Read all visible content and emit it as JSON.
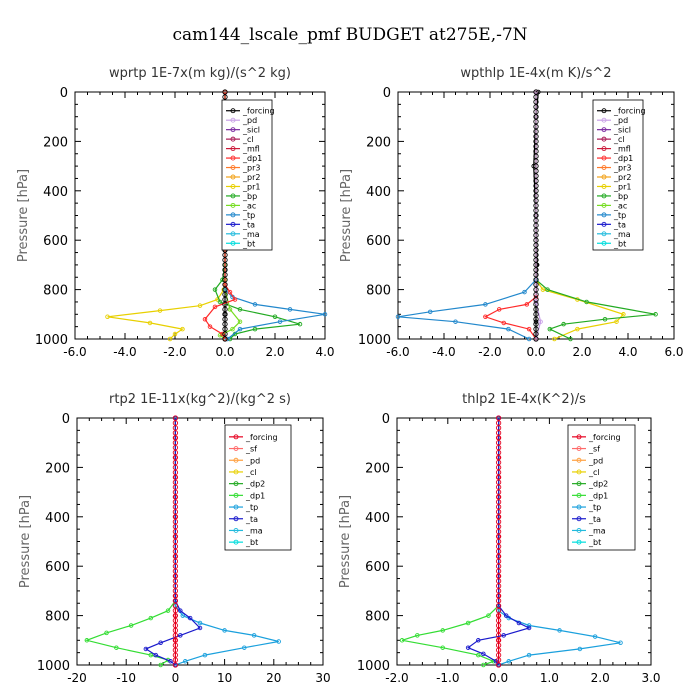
{
  "figure_title": "cam144_lscale_pmf  BUDGET at275E,-7N",
  "colors": {
    "_forcing": "#000000",
    "_forcing_b": "#e6001f",
    "_pd": "#c8a0e6",
    "_sicl": "#7a2aa0",
    "_cl": "#aa1a55",
    "_mfl": "#cc1a3a",
    "_dp1": "#ff2a2a",
    "_pr3": "#ff7a2a",
    "_pr2": "#f2a31c",
    "_pr1": "#e8d000",
    "_bp": "#22aa22",
    "_ac": "#77dd22",
    "_tp": "#2288cc",
    "_ta": "#1a1acc",
    "_ma": "#22bbdd",
    "_bt": "#00dddd",
    "_sf": "#ff6a6a",
    "_pd_b": "#ffa040",
    "_cl_b": "#e8d000",
    "_dp2": "#22aa22",
    "_dp1_b": "#33dd33",
    "_tp_b": "#1aa0dd",
    "_ta_b": "#1a1acc"
  },
  "chart_data": [
    {
      "type": "line",
      "title": "wprtp   1E-7x(m kg)/(s^2 kg)",
      "ylabel": "Pressure [hPa]",
      "xlim": [
        -6.0,
        4.0
      ],
      "ylim": [
        1000,
        0
      ],
      "xticks": [
        -6.0,
        -4.0,
        -2.0,
        0.0,
        2.0,
        4.0
      ],
      "xticklabels": [
        "-6.0",
        "-4.0",
        "-2.0",
        "0.0",
        "2.0",
        "4.0"
      ],
      "yticks": [
        0,
        200,
        400,
        600,
        800,
        1000
      ],
      "legend": [
        "_forcing",
        "_pd",
        "_sicl",
        "_cl",
        "_mfl",
        "_dp1",
        "_pr3",
        "_pr2",
        "_pr1",
        "_bp",
        "_ac",
        "_tp",
        "_ta",
        "_ma",
        "_bt"
      ],
      "legend_placement": "top-right",
      "series": [
        {
          "name": "_forcing",
          "color": "#000000",
          "x": [
            0,
            0,
            0,
            0,
            0,
            0,
            0,
            0,
            0,
            0,
            0,
            0,
            0
          ],
          "y": [
            0,
            80,
            160,
            240,
            320,
            400,
            480,
            560,
            640,
            720,
            800,
            900,
            1000
          ]
        },
        {
          "name": "_pr1",
          "color": "#e8d000",
          "x": [
            0,
            0,
            0,
            -0.05,
            -0.3,
            -1.0,
            -2.6,
            -4.7,
            -3.0,
            -1.7,
            -2.0,
            -2.2
          ],
          "y": [
            0,
            600,
            760,
            800,
            840,
            865,
            885,
            910,
            935,
            960,
            980,
            1000
          ]
        },
        {
          "name": "_bp",
          "color": "#22aa22",
          "x": [
            0,
            0,
            -0.1,
            -0.4,
            -0.2,
            0.6,
            2.0,
            3.0,
            1.2,
            0.4,
            0.2
          ],
          "y": [
            0,
            700,
            760,
            800,
            850,
            880,
            910,
            940,
            960,
            980,
            1000
          ]
        },
        {
          "name": "_ac",
          "color": "#77dd22",
          "x": [
            0,
            0,
            0.2,
            0.6,
            0.3,
            -0.2,
            0
          ],
          "y": [
            0,
            800,
            880,
            930,
            960,
            985,
            1000
          ]
        },
        {
          "name": "_tp",
          "color": "#2288cc",
          "x": [
            0,
            0,
            0.3,
            1.2,
            2.6,
            4.0,
            2.2,
            0.6,
            0.1
          ],
          "y": [
            0,
            800,
            830,
            860,
            880,
            900,
            930,
            960,
            1000
          ]
        },
        {
          "name": "_dp1",
          "color": "#ff2a2a",
          "x": [
            0,
            0,
            0.2,
            0.4,
            -0.4,
            -0.8,
            -0.6,
            -0.1,
            0
          ],
          "y": [
            0,
            780,
            810,
            840,
            870,
            920,
            950,
            980,
            1000
          ]
        }
      ]
    },
    {
      "type": "line",
      "title": "wpthlp   1E-4x(m K)/s^2",
      "ylabel": "Pressure [hPa]",
      "xlim": [
        -6.0,
        6.0
      ],
      "ylim": [
        1000,
        0
      ],
      "xticks": [
        -6.0,
        -4.0,
        -2.0,
        0.0,
        2.0,
        4.0,
        6.0
      ],
      "xticklabels": [
        "-6.0",
        "-4.0",
        "-2.0",
        "0.0",
        "2.0",
        "4.0",
        "6.0"
      ],
      "yticks": [
        0,
        200,
        400,
        600,
        800,
        1000
      ],
      "legend": [
        "_forcing",
        "_pd",
        "_sicl",
        "_cl",
        "_mfl",
        "_dp1",
        "_pr3",
        "_pr2",
        "_pr1",
        "_bp",
        "_ac",
        "_tp",
        "_ta",
        "_ma",
        "_bt"
      ],
      "legend_placement": "top-right",
      "series": [
        {
          "name": "_forcing",
          "color": "#000000",
          "x": [
            0.1,
            0,
            -0.1,
            0,
            0.05,
            0,
            0,
            0
          ],
          "y": [
            0,
            100,
            300,
            500,
            700,
            850,
            930,
            1000
          ]
        },
        {
          "name": "_pr1",
          "color": "#e8d000",
          "x": [
            0,
            0,
            0.3,
            1.8,
            3.8,
            3.5,
            1.8,
            0.8
          ],
          "y": [
            0,
            760,
            800,
            840,
            900,
            930,
            960,
            1000
          ]
        },
        {
          "name": "_bp",
          "color": "#22aa22",
          "x": [
            0,
            0,
            0.5,
            2.2,
            5.2,
            3.0,
            1.2,
            0.6,
            1.5
          ],
          "y": [
            0,
            760,
            800,
            850,
            900,
            920,
            940,
            960,
            1000
          ]
        },
        {
          "name": "_tp",
          "color": "#2288cc",
          "x": [
            0,
            0,
            -0.5,
            -2.2,
            -4.6,
            -6.0,
            -3.5,
            -1.2,
            -0.3
          ],
          "y": [
            0,
            760,
            810,
            860,
            890,
            910,
            930,
            960,
            1000
          ]
        },
        {
          "name": "_dp1",
          "color": "#ff2a2a",
          "x": [
            0,
            0,
            -0.4,
            -1.6,
            -2.2,
            -1.4,
            -0.3,
            0
          ],
          "y": [
            0,
            830,
            860,
            880,
            910,
            935,
            960,
            1000
          ]
        },
        {
          "name": "_pd",
          "color": "#c8a0e6",
          "x": [
            0,
            0,
            0.2,
            0
          ],
          "y": [
            0,
            850,
            930,
            1000
          ]
        }
      ]
    },
    {
      "type": "line",
      "title": "rtp2   1E-11x(kg^2)/(kg^2 s)",
      "ylabel": "Pressure [hPa]",
      "xlim": [
        -20,
        30
      ],
      "ylim": [
        1000,
        0
      ],
      "xticks": [
        -20,
        -10,
        0,
        10,
        20,
        30
      ],
      "xticklabels": [
        "-20",
        "-10",
        "0",
        "10",
        "20",
        "30"
      ],
      "yticks": [
        0,
        200,
        400,
        600,
        800,
        1000
      ],
      "legend": [
        "_forcing",
        "_sf",
        "_pd",
        "_cl",
        "_dp2",
        "_dp1",
        "_tp",
        "_ta",
        "_ma",
        "_bt"
      ],
      "legend_placement": "top-right",
      "series": [
        {
          "name": "_forcing",
          "color": "#e6001f",
          "x": [
            0,
            0,
            0,
            0,
            0,
            0,
            0,
            0,
            0,
            0,
            0,
            0,
            0
          ],
          "y": [
            0,
            80,
            160,
            240,
            320,
            400,
            480,
            560,
            640,
            720,
            800,
            900,
            1000
          ]
        },
        {
          "name": "_dp1",
          "color": "#33dd33",
          "x": [
            0,
            0,
            -1.5,
            -5,
            -9,
            -14,
            -18,
            -12,
            -5,
            -1.5,
            -3
          ],
          "y": [
            0,
            740,
            780,
            810,
            840,
            870,
            900,
            930,
            960,
            980,
            1000
          ]
        },
        {
          "name": "_tp",
          "color": "#1aa0dd",
          "x": [
            0,
            0,
            1.5,
            5,
            10,
            16,
            21,
            14,
            6,
            2,
            0
          ],
          "y": [
            0,
            760,
            800,
            830,
            860,
            880,
            905,
            930,
            960,
            985,
            1000
          ]
        },
        {
          "name": "_ta",
          "color": "#1a1acc",
          "x": [
            0,
            0,
            1,
            3,
            5,
            1,
            -3,
            -6,
            -4,
            -1,
            0
          ],
          "y": [
            0,
            740,
            780,
            810,
            850,
            880,
            910,
            935,
            960,
            985,
            1000
          ]
        }
      ]
    },
    {
      "type": "line",
      "title": "thlp2   1E-4x(K^2)/s",
      "ylabel": "Pressure [hPa]",
      "xlim": [
        -2.0,
        3.0
      ],
      "ylim": [
        1000,
        0
      ],
      "xticks": [
        -2.0,
        -1.0,
        0.0,
        1.0,
        2.0,
        3.0
      ],
      "xticklabels": [
        "-2.0",
        "-1.0",
        "0.0",
        "1.0",
        "2.0",
        "3.0"
      ],
      "yticks": [
        0,
        200,
        400,
        600,
        800,
        1000
      ],
      "legend": [
        "_forcing",
        "_sf",
        "_pd",
        "_cl",
        "_dp2",
        "_dp1",
        "_tp",
        "_ta",
        "_ma",
        "_bt"
      ],
      "legend_placement": "top-right",
      "series": [
        {
          "name": "_forcing",
          "color": "#e6001f",
          "x": [
            0,
            0,
            0,
            0,
            0,
            0,
            0,
            0,
            0,
            0,
            0,
            0,
            0
          ],
          "y": [
            0,
            80,
            160,
            240,
            320,
            400,
            480,
            560,
            640,
            720,
            800,
            900,
            1000
          ]
        },
        {
          "name": "_dp1",
          "color": "#33dd33",
          "x": [
            0,
            0,
            -0.2,
            -0.6,
            -1.1,
            -1.6,
            -1.9,
            -1.1,
            -0.4,
            -0.1,
            -0.3
          ],
          "y": [
            0,
            760,
            800,
            830,
            860,
            880,
            900,
            930,
            960,
            985,
            1000
          ]
        },
        {
          "name": "_tp",
          "color": "#1aa0dd",
          "x": [
            0,
            0,
            0.2,
            0.6,
            1.2,
            1.9,
            2.4,
            1.6,
            0.6,
            0.2,
            0
          ],
          "y": [
            0,
            780,
            810,
            840,
            860,
            885,
            910,
            935,
            960,
            985,
            1000
          ]
        },
        {
          "name": "_ta",
          "color": "#1a1acc",
          "x": [
            0,
            0,
            0.15,
            0.4,
            0.6,
            0.1,
            -0.4,
            -0.6,
            -0.3,
            -0.05,
            0
          ],
          "y": [
            0,
            760,
            800,
            830,
            850,
            880,
            900,
            930,
            955,
            985,
            1000
          ]
        }
      ]
    }
  ]
}
